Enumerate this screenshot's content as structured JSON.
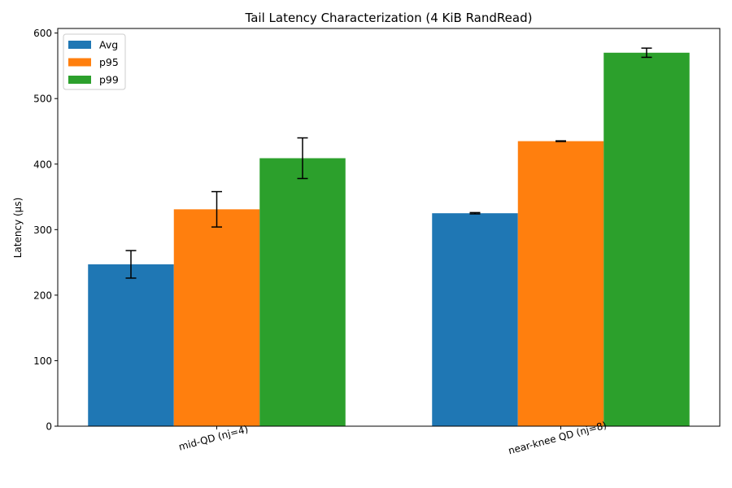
{
  "chart_data": {
    "type": "bar",
    "title": "Tail Latency Characterization (4 KiB RandRead)",
    "xlabel": "",
    "ylabel": "Latency (µs)",
    "categories": [
      "mid-QD (nj=4)",
      "near-knee QD (nj=8)"
    ],
    "ylim": [
      0,
      607
    ],
    "yticks": [
      0,
      100,
      200,
      300,
      400,
      500,
      600
    ],
    "grid": false,
    "legend_position": "top-left",
    "series": [
      {
        "name": "Avg",
        "color": "#1f77b4",
        "values": [
          247,
          325
        ],
        "err": [
          21,
          1
        ]
      },
      {
        "name": "p95",
        "color": "#ff7f0e",
        "values": [
          331,
          435
        ],
        "err": [
          27,
          0.5
        ]
      },
      {
        "name": "p99",
        "color": "#2ca02c",
        "values": [
          409,
          570
        ],
        "err": [
          31,
          7
        ]
      }
    ]
  }
}
